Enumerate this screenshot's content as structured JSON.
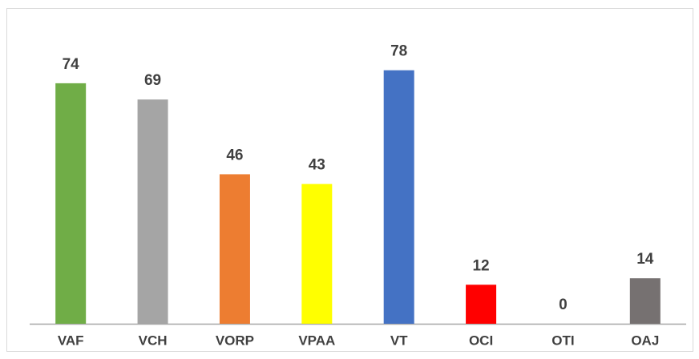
{
  "chart_data": {
    "type": "bar",
    "categories": [
      "VAF",
      "VCH",
      "VORP",
      "VPAA",
      "VT",
      "OCI",
      "OTI",
      "OAJ"
    ],
    "values": [
      74,
      69,
      46,
      43,
      78,
      12,
      0,
      14
    ],
    "colors": [
      "#70ad47",
      "#a5a5a5",
      "#ed7d31",
      "#ffff00",
      "#4472c4",
      "#ff0000",
      "#7f7f7f",
      "#767171"
    ],
    "ylim": [
      0,
      90
    ]
  }
}
